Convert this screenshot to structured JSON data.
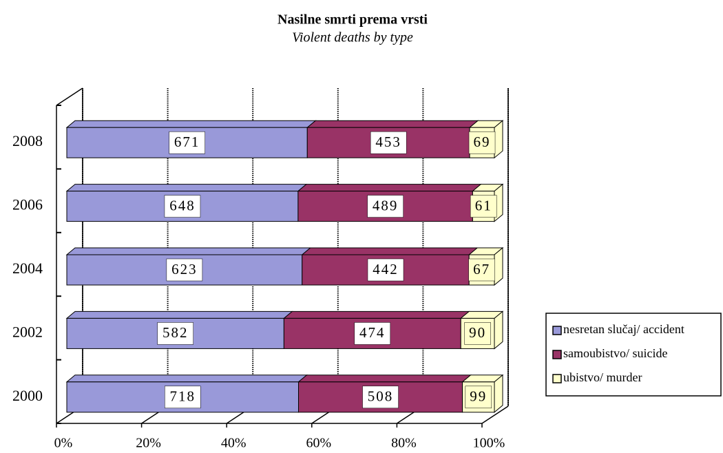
{
  "chart_data": {
    "type": "bar",
    "orientation": "horizontal",
    "stacking": "percent",
    "title": "Nasilne smrti prema vrsti",
    "subtitle": "Violent deaths by type",
    "categories": [
      "2008",
      "2006",
      "2004",
      "2002",
      "2000"
    ],
    "series": [
      {
        "name": "nesretan slučaj/ accident",
        "color": "#9999d9",
        "values": [
          671,
          648,
          623,
          582,
          718
        ]
      },
      {
        "name": "samoubistvo/ suicide",
        "color": "#993366",
        "values": [
          453,
          489,
          442,
          474,
          508
        ]
      },
      {
        "name": "ubistvo/ murder",
        "color": "#ffffcc",
        "values": [
          69,
          61,
          67,
          90,
          99
        ]
      }
    ],
    "xlim": [
      0,
      100
    ],
    "xticks": [
      {
        "value": 0,
        "label": "0%"
      },
      {
        "value": 20,
        "label": "20%"
      },
      {
        "value": 40,
        "label": "40%"
      },
      {
        "value": 60,
        "label": "60%"
      },
      {
        "value": 80,
        "label": "80%"
      },
      {
        "value": 100,
        "label": "100%"
      }
    ],
    "grid": true,
    "legend": "right"
  }
}
